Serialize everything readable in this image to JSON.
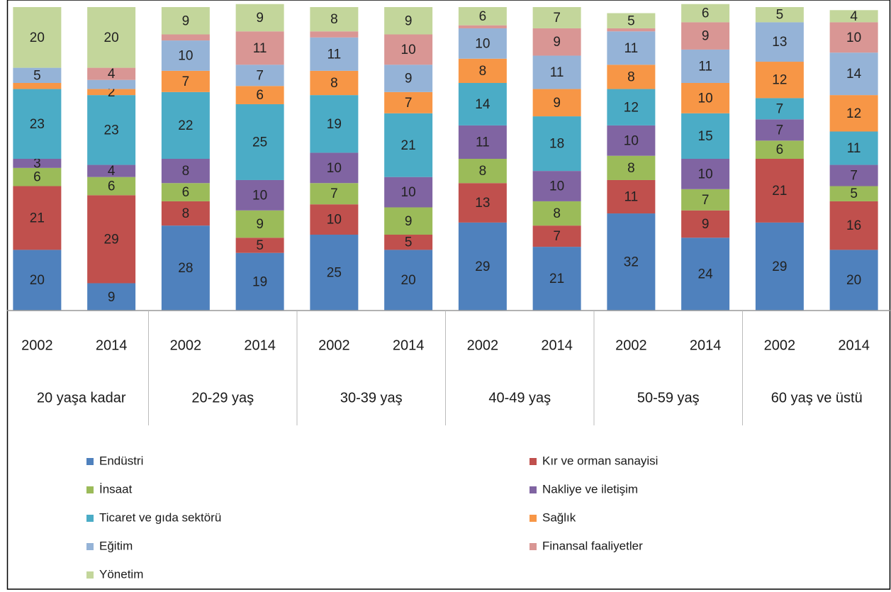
{
  "chart_data": {
    "type": "stacked_bar",
    "categories": [
      "2002",
      "2014",
      "2002",
      "2014",
      "2002",
      "2014",
      "2002",
      "2014",
      "2002",
      "2014",
      "2002",
      "2014"
    ],
    "groups": [
      "20 yaşa kadar",
      "20-29 yaş",
      "30-39 yaş",
      "40-49 yaş",
      "50-59 yaş",
      "60 yaş ve üstü"
    ],
    "ylim": [
      0,
      100
    ],
    "series": [
      {
        "name": "Endüstri",
        "color": "#4f81bd",
        "values": [
          20,
          9,
          28,
          19,
          25,
          20,
          29,
          21,
          32,
          24,
          29,
          20
        ],
        "value_labels": [
          "20",
          "9",
          "28",
          "19",
          "25",
          "20",
          "29",
          "21",
          "32",
          "24",
          "29",
          "20"
        ]
      },
      {
        "name": "Kır ve orman sanayisi",
        "color": "#c0504d",
        "values": [
          21,
          29,
          8,
          5,
          10,
          5,
          13,
          7,
          11,
          9,
          21,
          16
        ],
        "value_labels": [
          "21",
          "29",
          "8",
          "5",
          "10",
          "5",
          "13",
          "7",
          "11",
          "9",
          "21",
          "16"
        ]
      },
      {
        "name": "İnsaat",
        "color": "#9bbb59",
        "values": [
          6,
          6,
          6,
          9,
          7,
          9,
          8,
          8,
          8,
          7,
          6,
          5
        ],
        "value_labels": [
          "6",
          "6",
          "6",
          "9",
          "7",
          "9",
          "8",
          "8",
          "8",
          "7",
          "6",
          "5"
        ]
      },
      {
        "name": "Nakliye ve iletişim",
        "color": "#8064a2",
        "values": [
          3,
          4,
          8,
          10,
          10,
          10,
          11,
          10,
          10,
          10,
          7,
          7
        ],
        "value_labels": [
          "3",
          "4",
          "8",
          "10",
          "10",
          "10",
          "11",
          "10",
          "10",
          "10",
          "7",
          "7"
        ]
      },
      {
        "name": "Ticaret ve gıda sektörü",
        "color": "#4bacc6",
        "values": [
          23,
          23,
          22,
          25,
          19,
          21,
          14,
          18,
          12,
          15,
          7,
          11
        ],
        "value_labels": [
          "23",
          "23",
          "22",
          "25",
          "19",
          "21",
          "14",
          "18",
          "12",
          "15",
          "7",
          "11"
        ]
      },
      {
        "name": "Sağlık",
        "color": "#f79646",
        "values": [
          2,
          2,
          7,
          6,
          8,
          7,
          8,
          9,
          8,
          10,
          12,
          12
        ],
        "value_labels": [
          null,
          "2",
          "7",
          "6",
          "8",
          "7",
          "8",
          "9",
          "8",
          "10",
          "12",
          "12"
        ]
      },
      {
        "name": "Eğitim",
        "color": "#95b3d7",
        "values": [
          5,
          3,
          10,
          7,
          11,
          9,
          10,
          11,
          11,
          11,
          13,
          14
        ],
        "value_labels": [
          "5",
          null,
          "10",
          "7",
          "11",
          "9",
          "10",
          "11",
          "11",
          "11",
          "13",
          "14"
        ]
      },
      {
        "name": "Finansal faaliyetler",
        "color": "#d99694",
        "values": [
          0,
          4,
          2,
          11,
          2,
          10,
          1,
          9,
          1,
          9,
          0,
          10
        ],
        "value_labels": [
          null,
          "4",
          null,
          "11",
          null,
          "10",
          null,
          "9",
          null,
          "9",
          null,
          "10"
        ]
      },
      {
        "name": "Yönetim",
        "color": "#c3d69b",
        "values": [
          20,
          20,
          9,
          9,
          8,
          9,
          6,
          7,
          5,
          6,
          5,
          4
        ],
        "value_labels": [
          "20",
          "20",
          "9",
          "9",
          "8",
          "9",
          "6",
          "7",
          "5",
          "6",
          "5",
          "4"
        ]
      }
    ]
  }
}
